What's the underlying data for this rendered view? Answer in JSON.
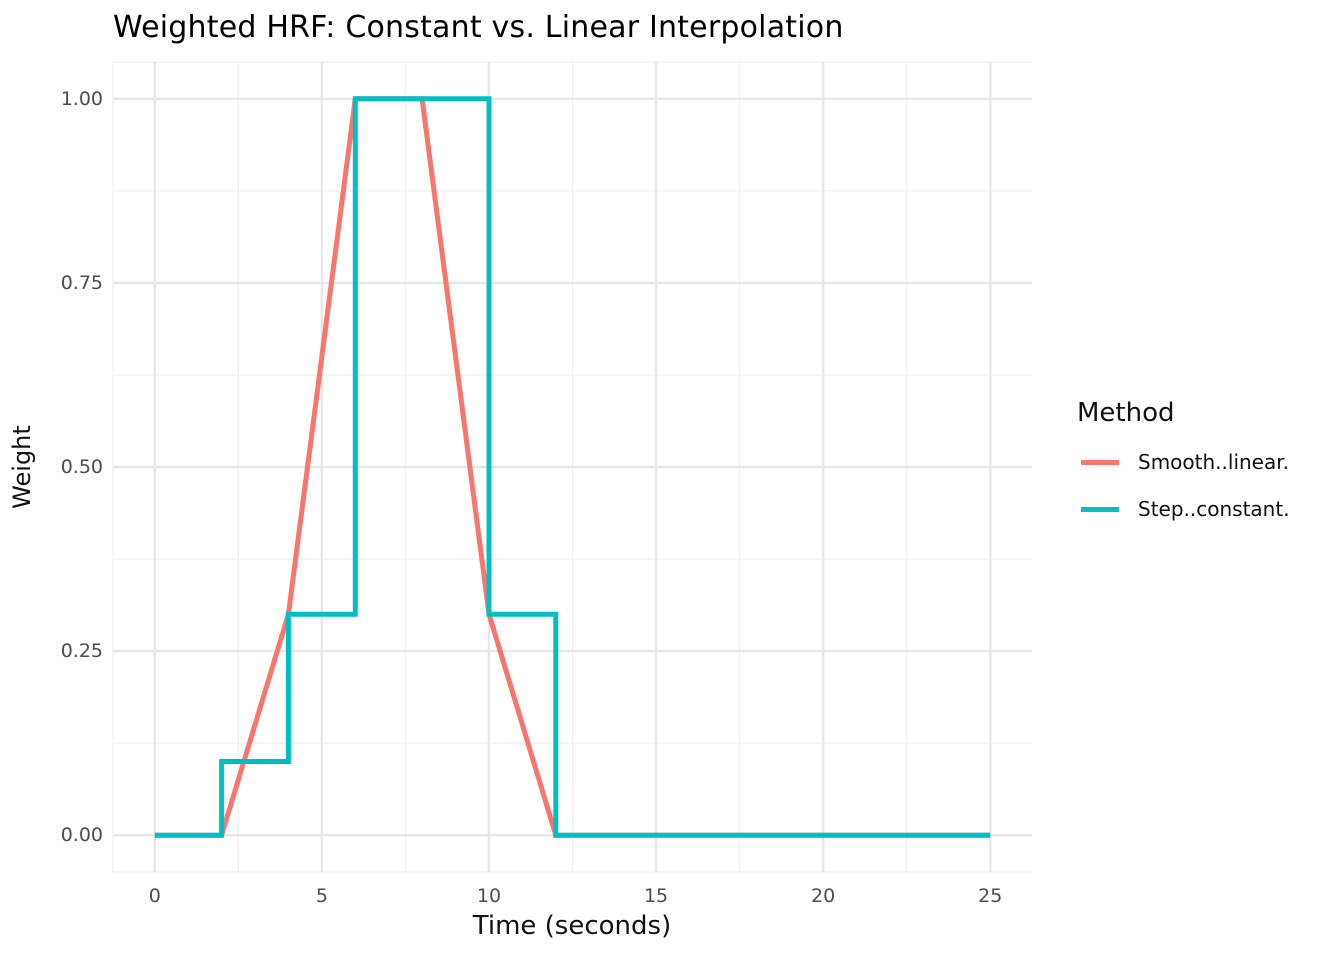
{
  "title": "Weighted HRF: Constant vs. Linear Interpolation",
  "chart_data": {
    "type": "line",
    "title": "Weighted HRF: Constant vs. Linear Interpolation",
    "xlabel": "Time (seconds)",
    "ylabel": "Weight",
    "xlim": [
      0,
      25
    ],
    "ylim": [
      0,
      1
    ],
    "x_ticks": [
      0,
      5,
      10,
      15,
      20,
      25
    ],
    "x_tick_labels": [
      "0",
      "5",
      "10",
      "15",
      "20",
      "25"
    ],
    "x_minor_ticks": [
      2.5,
      7.5,
      12.5,
      17.5,
      22.5
    ],
    "y_ticks": [
      0,
      0.25,
      0.5,
      0.75,
      1.0
    ],
    "y_tick_labels": [
      "0.00",
      "0.25",
      "0.50",
      "0.75",
      "1.00"
    ],
    "y_minor_ticks": [
      0.125,
      0.375,
      0.625,
      0.875
    ],
    "grid": "major-and-minor",
    "background": "#ffffff",
    "grid_major_color": "#e7e7e7",
    "grid_minor_color": "#f0f0f0",
    "tick_label_color": "#4d4d4d",
    "legend_position": "right",
    "legend_title": "Method",
    "series": [
      {
        "name": "Smooth..linear.",
        "color": "#F8766D",
        "interpolation": "linear",
        "points": [
          [
            0,
            0
          ],
          [
            2,
            0
          ],
          [
            4,
            0.3
          ],
          [
            6,
            1
          ],
          [
            8,
            1
          ],
          [
            10,
            0.3
          ],
          [
            12,
            0
          ],
          [
            25,
            0
          ]
        ]
      },
      {
        "name": "Step..constant.",
        "color": "#00BFC4",
        "interpolation": "step-constant",
        "points": [
          [
            0,
            0
          ],
          [
            2,
            0
          ],
          [
            2,
            0.1
          ],
          [
            4,
            0.1
          ],
          [
            4,
            0.3
          ],
          [
            6,
            0.3
          ],
          [
            6,
            1
          ],
          [
            10,
            1
          ],
          [
            10,
            0.3
          ],
          [
            12,
            0.3
          ],
          [
            12,
            0
          ],
          [
            25,
            0
          ]
        ]
      }
    ]
  }
}
